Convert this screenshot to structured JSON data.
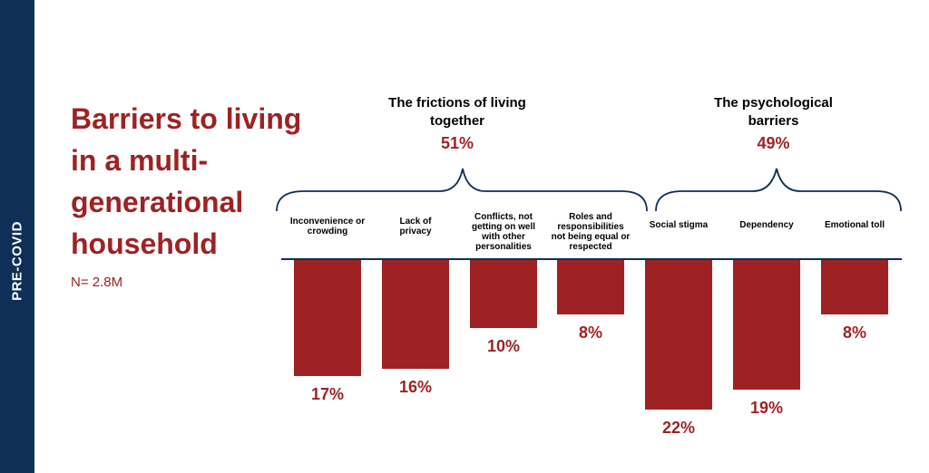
{
  "side_label": "PRE-COVID",
  "title": "Barriers to living in a multi-generational household",
  "n_label": "N= 2.8M",
  "groups": [
    {
      "title": "The frictions of living together",
      "pct": "51%"
    },
    {
      "title": "The psychological barriers",
      "pct": "49%"
    }
  ],
  "colors": {
    "bar": "#9e2224",
    "band": "#0f2f57",
    "accent_text": "#9e2224"
  },
  "chart_data": {
    "type": "bar",
    "orientation": "vertical-downward",
    "categories": [
      "Inconvenience or crowding",
      "Lack of privacy",
      "Conflicts, not getting on well with other personalities",
      "Roles and responsibilities not being equal or respected",
      "Social stigma",
      "Dependency",
      "Emotional toll"
    ],
    "values": [
      17,
      16,
      10,
      8,
      22,
      19,
      8
    ],
    "value_labels": [
      "17%",
      "16%",
      "10%",
      "8%",
      "22%",
      "19%",
      "8%"
    ],
    "ylim": [
      0,
      22
    ],
    "grid": false
  }
}
